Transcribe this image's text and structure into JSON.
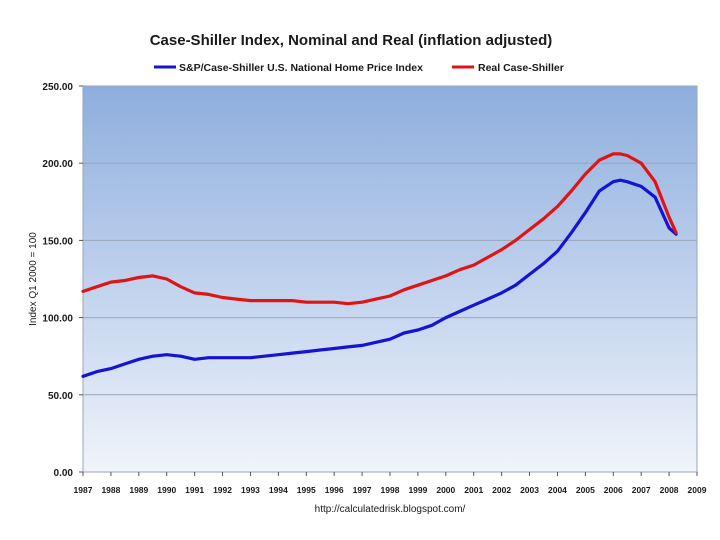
{
  "chart_data": {
    "type": "line",
    "title": "Case-Shiller Index, Nominal and Real (inflation adjusted)",
    "xlabel": "",
    "ylabel": "Index Q1 2000 = 100",
    "source": "http://calculatedrisk.blogspot.com/",
    "xlim": [
      1987,
      2009
    ],
    "ylim": [
      0,
      250
    ],
    "y_ticks": [
      "0.00",
      "50.00",
      "100.00",
      "150.00",
      "200.00",
      "250.00"
    ],
    "y_tick_values": [
      0,
      50,
      100,
      150,
      200,
      250
    ],
    "x_ticks": [
      "1987",
      "1988",
      "1989",
      "1990",
      "1991",
      "1992",
      "1993",
      "1994",
      "1995",
      "1996",
      "1997",
      "1998",
      "1999",
      "2000",
      "2001",
      "2002",
      "2003",
      "2004",
      "2005",
      "2006",
      "2007",
      "2008",
      "2009"
    ],
    "legend_position": "top",
    "grid": true,
    "series": [
      {
        "name": "S&P/Case-Shiller U.S. National Home Price Index",
        "color": "#1414d2",
        "x": [
          1987.0,
          1987.5,
          1988.0,
          1988.5,
          1989.0,
          1989.5,
          1990.0,
          1990.5,
          1991.0,
          1991.5,
          1992.0,
          1992.5,
          1993.0,
          1993.5,
          1994.0,
          1994.5,
          1995.0,
          1995.5,
          1996.0,
          1996.5,
          1997.0,
          1997.5,
          1998.0,
          1998.5,
          1999.0,
          1999.5,
          2000.0,
          2000.5,
          2001.0,
          2001.5,
          2002.0,
          2002.5,
          2003.0,
          2003.5,
          2004.0,
          2004.5,
          2005.0,
          2005.5,
          2006.0,
          2006.25,
          2006.5,
          2007.0,
          2007.5,
          2008.0,
          2008.25
        ],
        "values": [
          62,
          65,
          67,
          70,
          73,
          75,
          76,
          75,
          73,
          74,
          74,
          74,
          74,
          75,
          76,
          77,
          78,
          79,
          80,
          81,
          82,
          84,
          86,
          90,
          92,
          95,
          100,
          104,
          108,
          112,
          116,
          121,
          128,
          135,
          143,
          155,
          168,
          182,
          188,
          189,
          188,
          185,
          178,
          158,
          154
        ]
      },
      {
        "name": "Real Case-Shiller",
        "color": "#e01414",
        "x": [
          1987.0,
          1987.5,
          1988.0,
          1988.5,
          1989.0,
          1989.5,
          1990.0,
          1990.5,
          1991.0,
          1991.5,
          1992.0,
          1992.5,
          1993.0,
          1993.5,
          1994.0,
          1994.5,
          1995.0,
          1995.5,
          1996.0,
          1996.5,
          1997.0,
          1997.5,
          1998.0,
          1998.5,
          1999.0,
          1999.5,
          2000.0,
          2000.5,
          2001.0,
          2001.5,
          2002.0,
          2002.5,
          2003.0,
          2003.5,
          2004.0,
          2004.5,
          2005.0,
          2005.5,
          2006.0,
          2006.25,
          2006.5,
          2007.0,
          2007.5,
          2008.0,
          2008.25
        ],
        "values": [
          117,
          120,
          123,
          124,
          126,
          127,
          125,
          120,
          116,
          115,
          113,
          112,
          111,
          111,
          111,
          111,
          110,
          110,
          110,
          109,
          110,
          112,
          114,
          118,
          121,
          124,
          127,
          131,
          134,
          139,
          144,
          150,
          157,
          164,
          172,
          182,
          193,
          202,
          206,
          206,
          205,
          200,
          188,
          165,
          155
        ]
      }
    ]
  }
}
